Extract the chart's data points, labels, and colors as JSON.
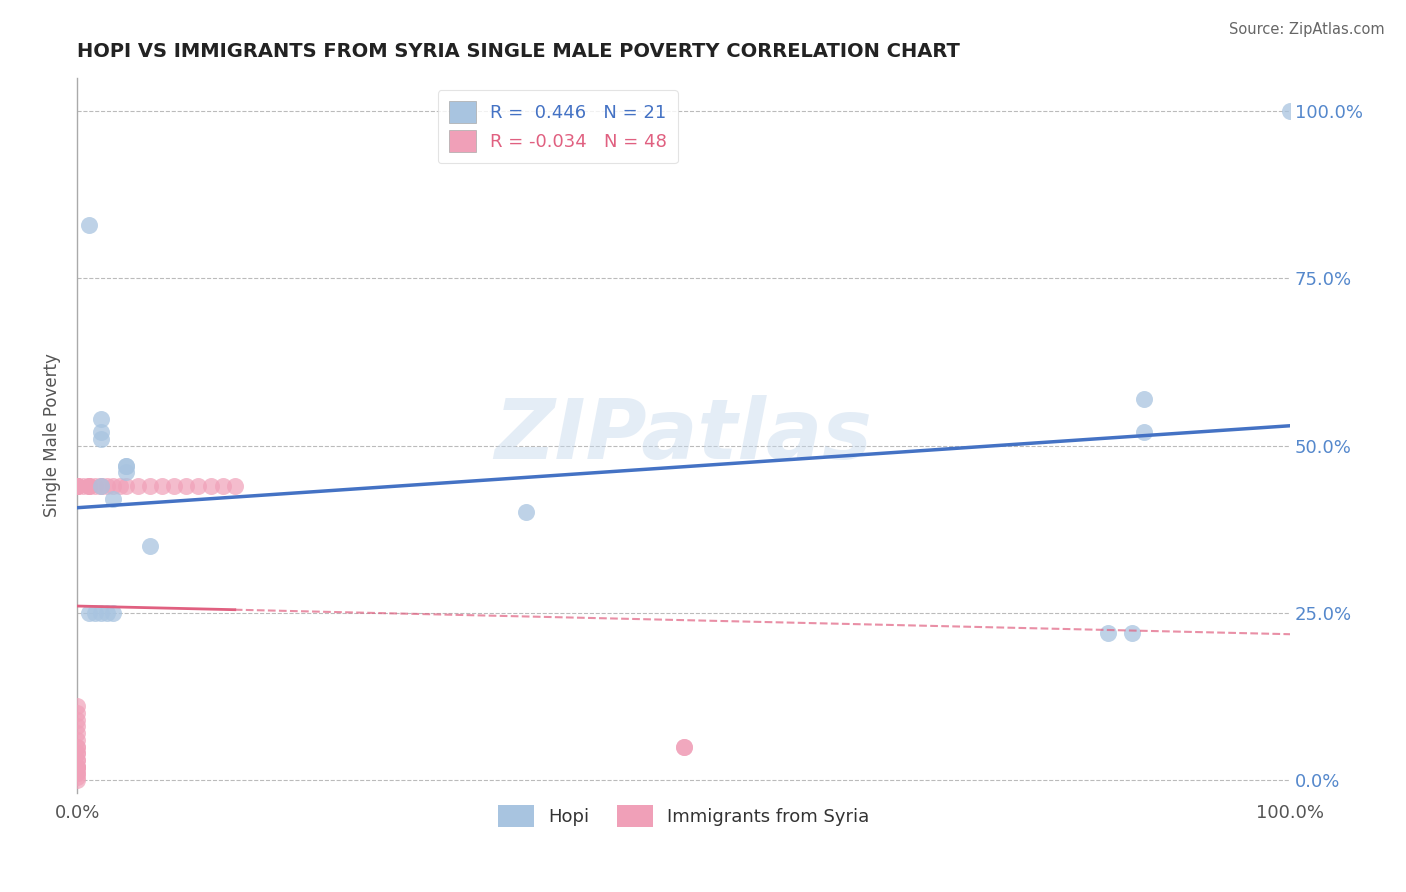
{
  "title": "HOPI VS IMMIGRANTS FROM SYRIA SINGLE MALE POVERTY CORRELATION CHART",
  "source_text": "Source: ZipAtlas.com",
  "ylabel": "Single Male Poverty",
  "watermark": "ZIPatlas",
  "hopi_R": 0.446,
  "hopi_N": 21,
  "syria_R": -0.034,
  "syria_N": 48,
  "hopi_color": "#a8c4e0",
  "hopi_line_color": "#4472c4",
  "syria_color": "#f0a0b8",
  "syria_line_color": "#e06080",
  "background_color": "#ffffff",
  "grid_color": "#bbbbbb",
  "title_color": "#222222",
  "axis_label_color": "#555555",
  "right_tick_color": "#5588cc",
  "legend_R_hopi_color": "#4472c4",
  "legend_R_syria_color": "#e06080",
  "hopi_x": [
    0.02,
    0.04,
    0.02,
    0.04,
    0.03,
    0.02,
    0.04,
    0.06,
    0.37,
    0.85,
    0.87,
    0.88,
    0.88,
    1.0,
    0.01,
    0.02,
    0.01,
    0.015,
    0.02,
    0.025,
    0.03
  ],
  "hopi_y": [
    0.52,
    0.46,
    0.54,
    0.47,
    0.42,
    0.44,
    0.47,
    0.35,
    0.4,
    0.22,
    0.22,
    0.52,
    0.57,
    1.0,
    0.83,
    0.51,
    0.25,
    0.25,
    0.25,
    0.25,
    0.25
  ],
  "syria_x": [
    0.0,
    0.0,
    0.0,
    0.0,
    0.0,
    0.0,
    0.0,
    0.0,
    0.0,
    0.0,
    0.0,
    0.0,
    0.0,
    0.0,
    0.0,
    0.0,
    0.0,
    0.0,
    0.0,
    0.0,
    0.0,
    0.0,
    0.0,
    0.0,
    0.0,
    0.0,
    0.005,
    0.01,
    0.01,
    0.01,
    0.015,
    0.02,
    0.02,
    0.025,
    0.03,
    0.035,
    0.04,
    0.05,
    0.06,
    0.07,
    0.08,
    0.09,
    0.1,
    0.11,
    0.12,
    0.13,
    0.5,
    0.5
  ],
  "syria_y": [
    0.0,
    0.005,
    0.01,
    0.01,
    0.02,
    0.02,
    0.02,
    0.02,
    0.03,
    0.03,
    0.04,
    0.04,
    0.05,
    0.05,
    0.06,
    0.07,
    0.08,
    0.09,
    0.1,
    0.11,
    0.44,
    0.44,
    0.44,
    0.44,
    0.44,
    0.44,
    0.44,
    0.44,
    0.44,
    0.44,
    0.44,
    0.44,
    0.44,
    0.44,
    0.44,
    0.44,
    0.44,
    0.44,
    0.44,
    0.44,
    0.44,
    0.44,
    0.44,
    0.44,
    0.44,
    0.44,
    0.05,
    0.05
  ],
  "xlim": [
    0.0,
    1.0
  ],
  "ylim": [
    -0.02,
    1.05
  ],
  "yticks": [
    0.0,
    0.25,
    0.5,
    0.75,
    1.0
  ],
  "ytick_labels": [
    "0.0%",
    "25.0%",
    "50.0%",
    "75.0%",
    "100.0%"
  ],
  "xticks": [
    0.0,
    1.0
  ],
  "xtick_labels": [
    "0.0%",
    "100.0%"
  ]
}
